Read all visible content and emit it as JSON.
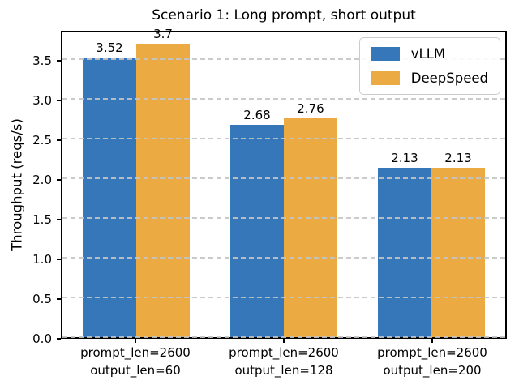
{
  "chart_data": {
    "type": "bar",
    "title": "Scenario 1: Long prompt, short output",
    "xlabel": "",
    "ylabel": "Throughput (reqs/s)",
    "categories": [
      "prompt_len=2600\noutput_len=60",
      "prompt_len=2600\noutput_len=128",
      "prompt_len=2600\noutput_len=200"
    ],
    "series": [
      {
        "name": "vLLM",
        "color": "#3577b8",
        "values": [
          3.52,
          2.68,
          2.13
        ]
      },
      {
        "name": "DeepSpeed",
        "color": "#ecaa43",
        "values": [
          3.7,
          2.76,
          2.13
        ]
      }
    ],
    "bar_value_labels": [
      [
        "3.52",
        "2.68",
        "2.13"
      ],
      [
        "3.7",
        "2.76",
        "2.13"
      ]
    ],
    "yticks": [
      "0.0",
      "0.5",
      "1.0",
      "1.5",
      "2.0",
      "2.5",
      "3.0",
      "3.5"
    ],
    "ylim": [
      0,
      3.88
    ],
    "grid": "dashed-horizontal",
    "grid_color": "#c4c4c4",
    "legend_position": "upper-right",
    "background_color": "#ffffff",
    "text_color": "#000000"
  }
}
